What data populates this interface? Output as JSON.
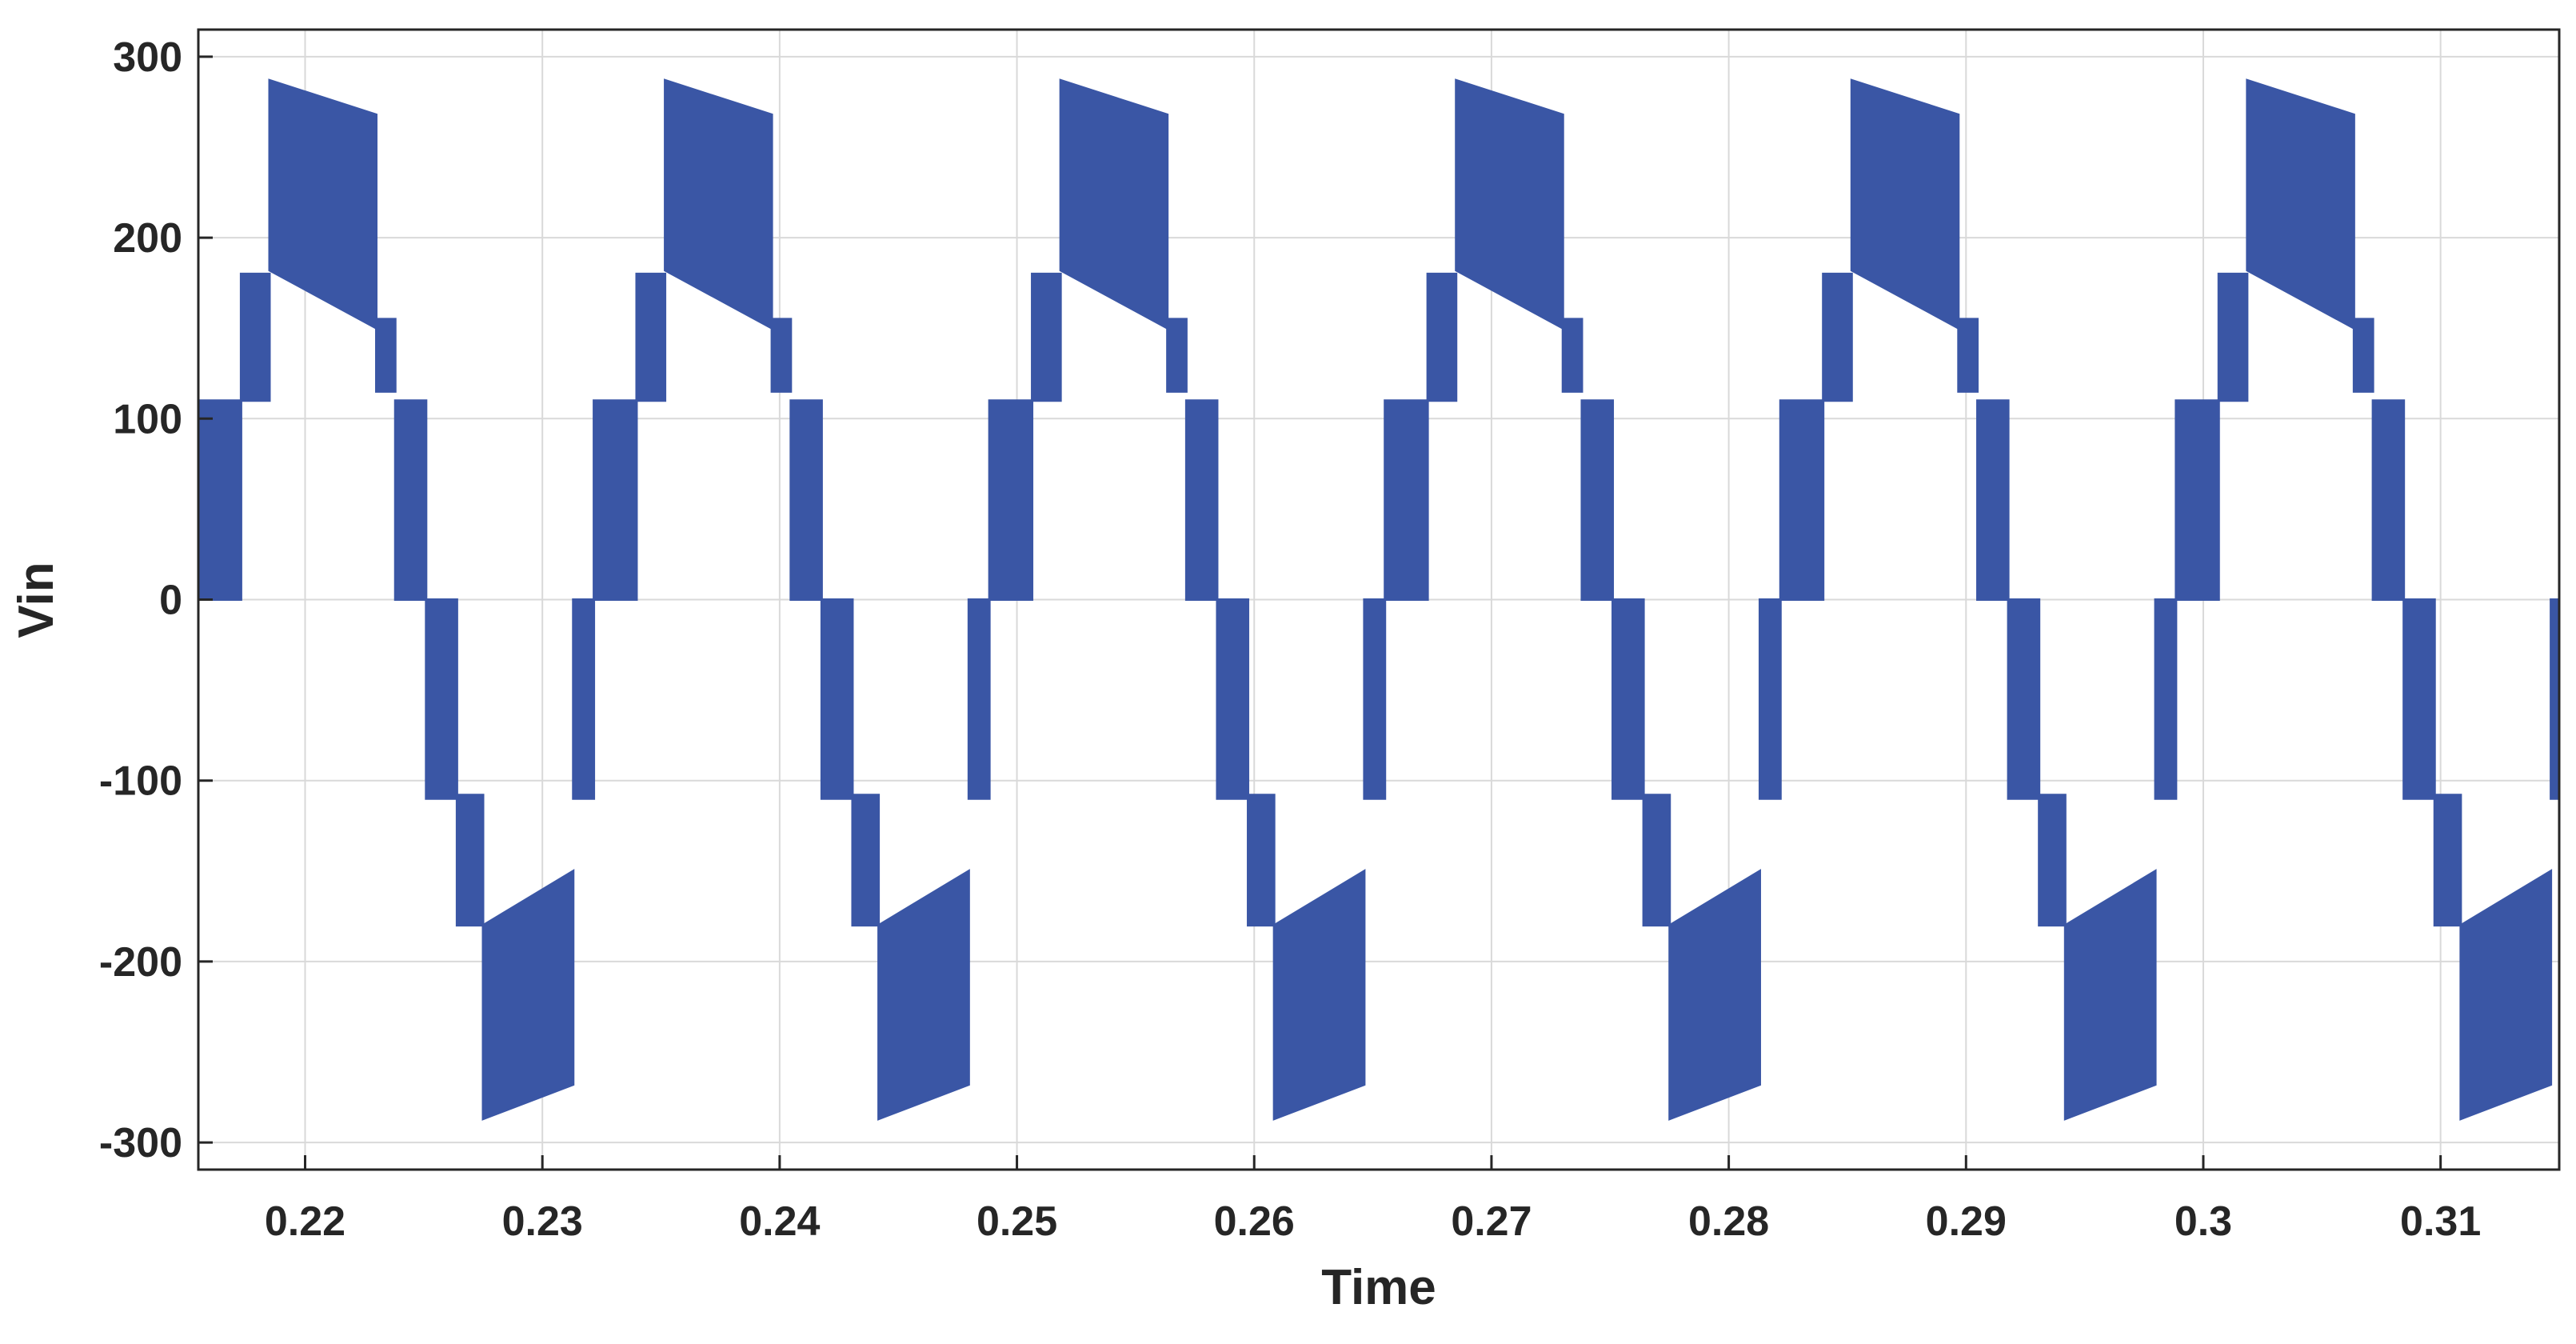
{
  "chart_data": {
    "type": "line",
    "title": "",
    "xlabel": "Time",
    "ylabel": "Vin",
    "xlim": [
      0.2155,
      0.315
    ],
    "ylim": [
      -315,
      315
    ],
    "grid": true,
    "xticks": [
      0.22,
      0.23,
      0.24,
      0.25,
      0.26,
      0.27,
      0.28,
      0.29,
      0.3,
      0.31
    ],
    "xtick_labels": [
      "0.22",
      "0.23",
      "0.24",
      "0.25",
      "0.26",
      "0.27",
      "0.28",
      "0.29",
      "0.3",
      "0.31"
    ],
    "yticks": [
      300,
      200,
      100,
      0,
      -100,
      -200,
      -300
    ],
    "ytick_labels": [
      "300",
      "200",
      "100",
      "0",
      "-100",
      "-200",
      "-300"
    ],
    "series": [
      {
        "color": "#3a56a5",
        "period": 0.01667,
        "cycle_start": 0.2155,
        "envelope": [
          {
            "t0": 0.0,
            "t1": 0.0018,
            "low": 0,
            "high": 110
          },
          {
            "t0": 0.0018,
            "t1": 0.003,
            "low": 110,
            "high": 180
          },
          {
            "t0": 0.003,
            "t1": 0.0075,
            "low": 182,
            "high": 287,
            "low_end": 150,
            "high_end": 268
          },
          {
            "t0": 0.0075,
            "t1": 0.0083,
            "low": 115,
            "high": 155
          },
          {
            "t0": 0.0083,
            "t1": 0.0096,
            "low": 0,
            "high": 110
          },
          {
            "t0": 0.0096,
            "t1": 0.0109,
            "low": -110,
            "high": 0
          },
          {
            "t0": 0.0109,
            "t1": 0.012,
            "low": -180,
            "high": -108
          },
          {
            "t0": 0.012,
            "t1": 0.0158,
            "low": -287,
            "high": -180,
            "low_end": -268,
            "high_end": -150
          },
          {
            "t0": 0.0158,
            "t1": 0.01667,
            "low": -110,
            "high": 0
          }
        ]
      }
    ]
  }
}
